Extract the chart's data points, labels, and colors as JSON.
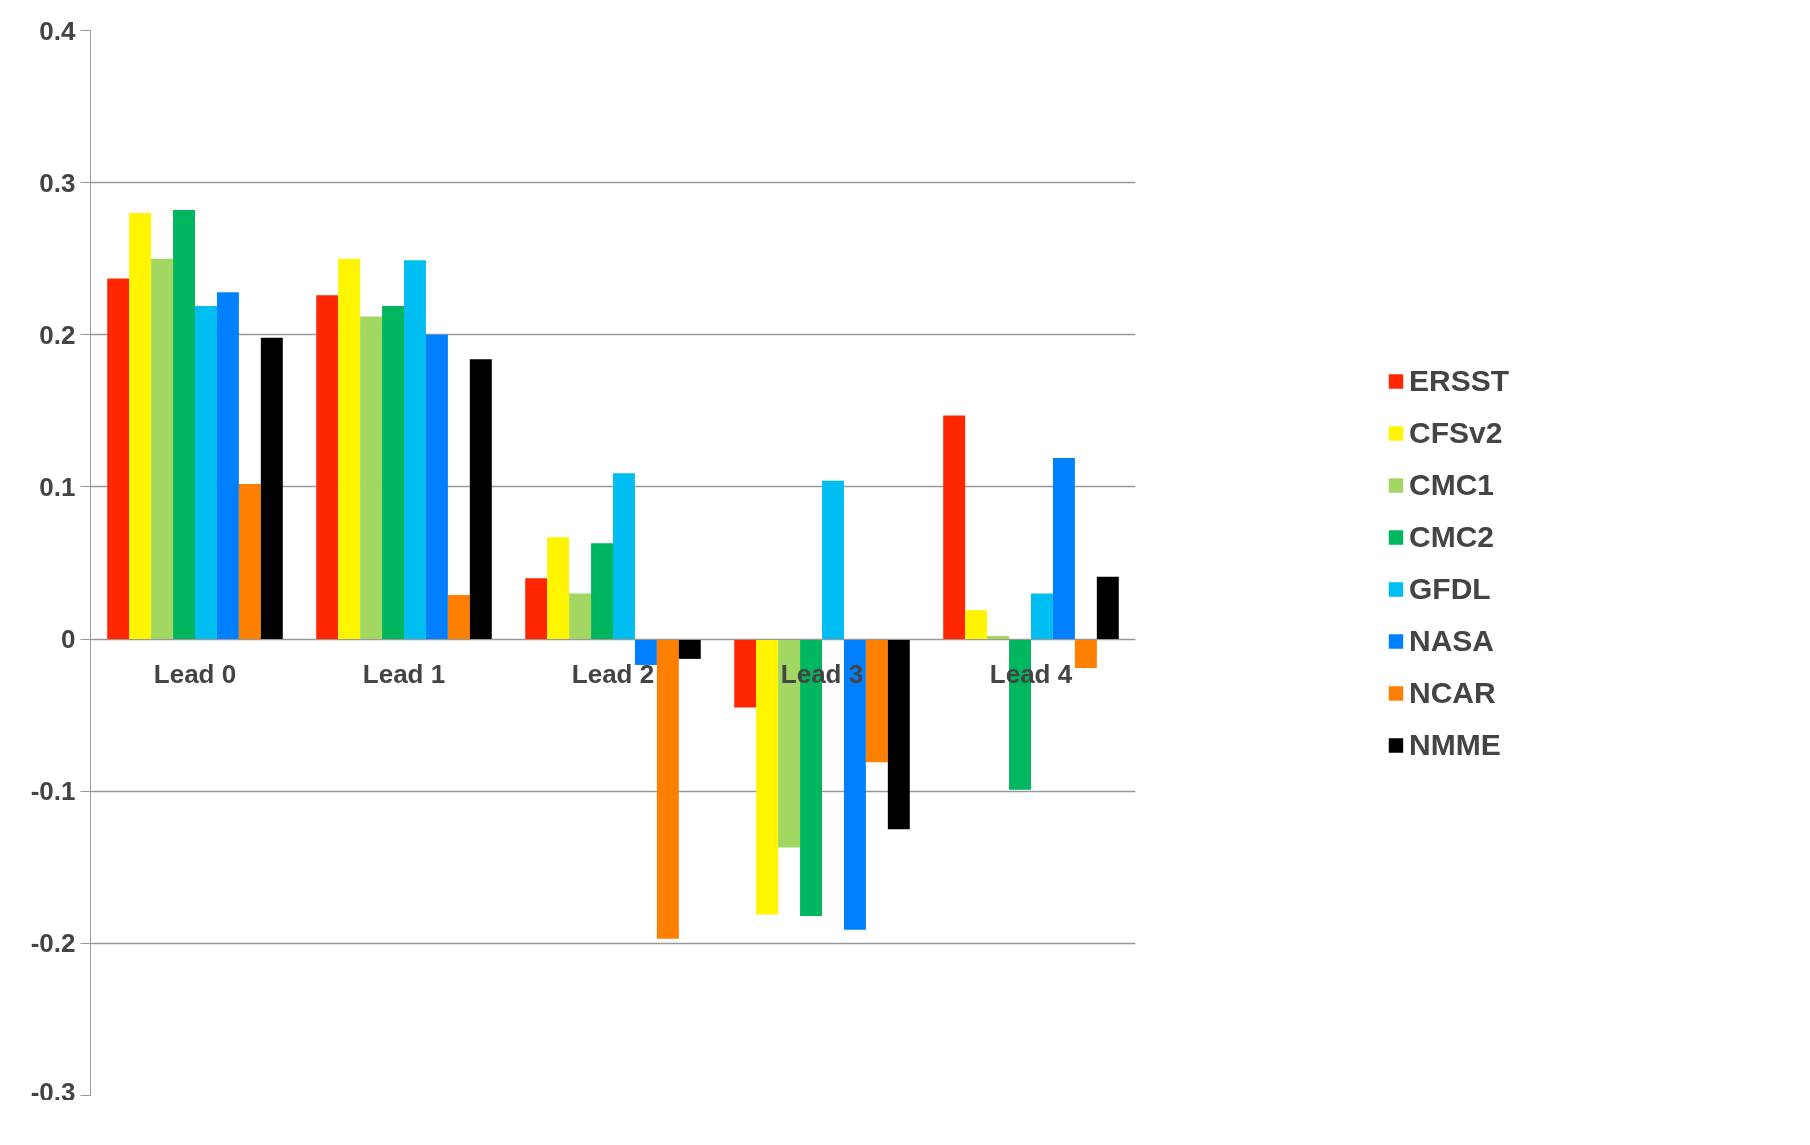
{
  "chart_data": {
    "type": "bar",
    "categories": [
      "Lead 0",
      "Lead 1",
      "Lead 2",
      "Lead 3",
      "Lead 4"
    ],
    "series": [
      {
        "name": "ERSST",
        "color": "#ff2600",
        "values": [
          0.237,
          0.226,
          0.04,
          -0.045,
          0.147
        ]
      },
      {
        "name": "CFSv2",
        "color": "#fff500",
        "values": [
          0.28,
          0.25,
          0.067,
          -0.181,
          0.019
        ]
      },
      {
        "name": "CMC1",
        "color": "#a2d862",
        "values": [
          0.25,
          0.212,
          0.03,
          -0.137,
          0.002
        ]
      },
      {
        "name": "CMC2",
        "color": "#00b65e",
        "values": [
          0.282,
          0.219,
          0.063,
          -0.182,
          -0.099
        ]
      },
      {
        "name": "GFDL",
        "color": "#00bdf2",
        "values": [
          0.219,
          0.249,
          0.109,
          0.104,
          0.03
        ]
      },
      {
        "name": "NASA",
        "color": "#0080ff",
        "values": [
          0.228,
          0.2,
          -0.017,
          -0.191,
          0.119
        ]
      },
      {
        "name": "NCAR",
        "color": "#ff7f00",
        "values": [
          0.102,
          0.029,
          -0.197,
          -0.081,
          -0.019
        ]
      },
      {
        "name": "NMME",
        "color": "#000000",
        "values": [
          0.198,
          0.184,
          -0.013,
          -0.125,
          0.041
        ]
      }
    ],
    "ylim": [
      -0.3,
      0.4
    ],
    "yticks": [
      -0.3,
      -0.2,
      -0.1,
      0,
      0.1,
      0.2,
      0.3,
      0.4
    ],
    "grid": "y",
    "legend": "right"
  }
}
